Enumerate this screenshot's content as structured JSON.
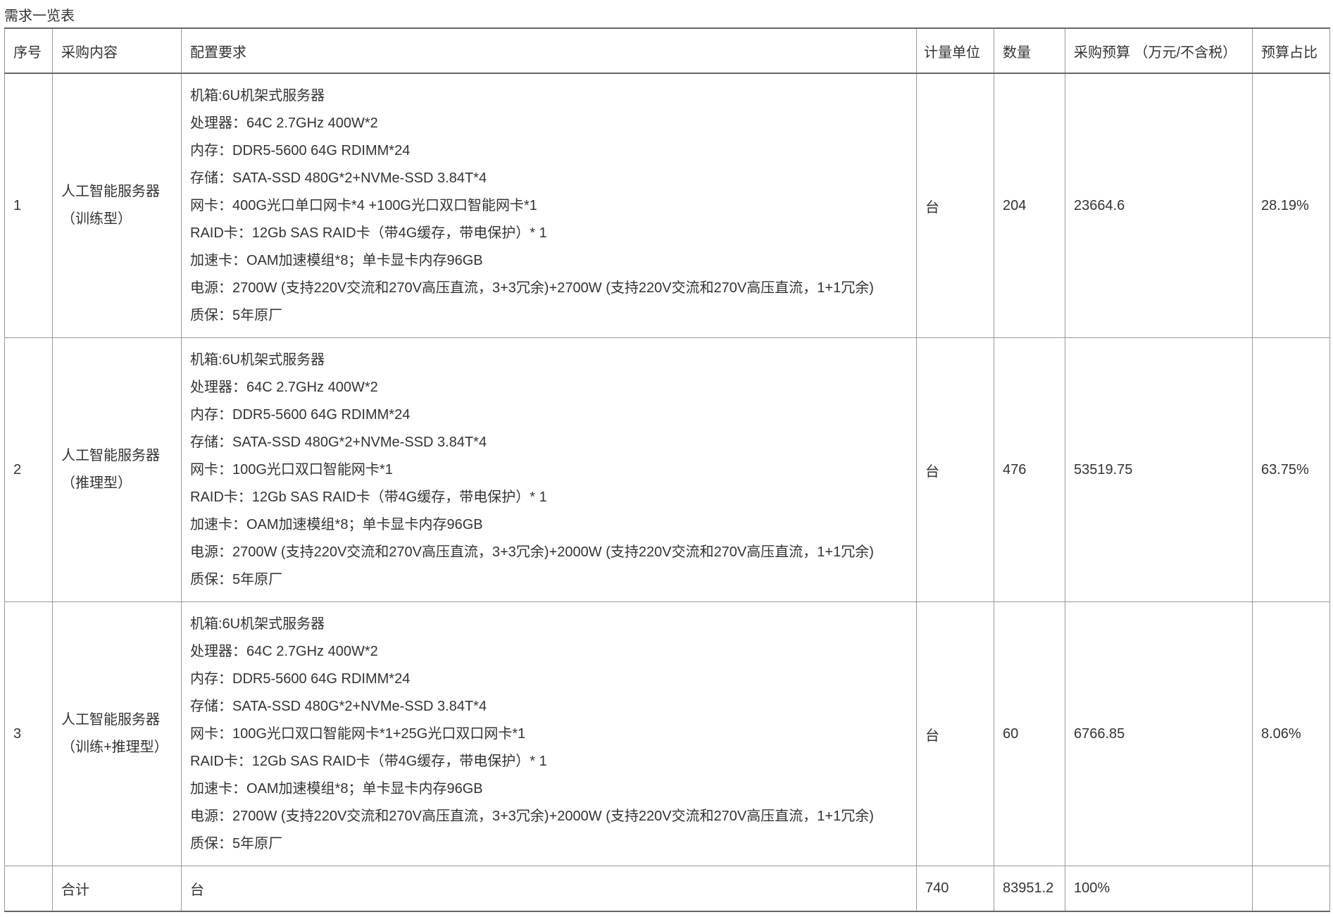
{
  "title": "需求一览表",
  "headers": [
    "序号",
    "采购内容",
    "配置要求",
    "计量单位",
    "数量",
    "采购预算 （万元/不含税）",
    "预算占比"
  ],
  "rows": [
    {
      "no": "1",
      "name": [
        "人工智能服务器",
        "（训练型）"
      ],
      "unit": "台",
      "qty": "204",
      "budget": "23664.6",
      "ratio": "28.19%",
      "config": [
        "机箱:6U机架式服务器",
        "处理器：64C 2.7GHz 400W*2",
        "内存：DDR5-5600 64G RDIMM*24",
        "存储：SATA-SSD 480G*2+NVMe-SSD 3.84T*4",
        "网卡：400G光口单口网卡*4 +100G光口双口智能网卡*1",
        "RAID卡：12Gb SAS RAID卡（带4G缓存，带电保护）* 1",
        "加速卡：OAM加速模组*8；单卡显卡内存96GB",
        "电源：2700W (支持220V交流和270V高压直流，3+3冗余)+2700W (支持220V交流和270V高压直流，1+1冗余)",
        "质保：5年原厂"
      ]
    },
    {
      "no": "2",
      "name": [
        "人工智能服务器",
        "（推理型）"
      ],
      "unit": "台",
      "qty": "476",
      "budget": "53519.75",
      "ratio": "63.75%",
      "config": [
        "机箱:6U机架式服务器",
        "处理器：64C 2.7GHz 400W*2",
        "内存：DDR5-5600 64G RDIMM*24",
        "存储：SATA-SSD 480G*2+NVMe-SSD 3.84T*4",
        "网卡：100G光口双口智能网卡*1",
        "RAID卡：12Gb SAS RAID卡（带4G缓存，带电保护）* 1",
        "加速卡：OAM加速模组*8；单卡显卡内存96GB",
        "电源：2700W (支持220V交流和270V高压直流，3+3冗余)+2000W (支持220V交流和270V高压直流，1+1冗余)",
        "质保：5年原厂"
      ]
    },
    {
      "no": "3",
      "name": [
        "人工智能服务器",
        "（训练+推理型）"
      ],
      "unit": "台",
      "qty": "60",
      "budget": "6766.85",
      "ratio": "8.06%",
      "config": [
        "机箱:6U机架式服务器",
        "处理器：64C 2.7GHz 400W*2",
        "内存：DDR5-5600 64G RDIMM*24",
        "存储：SATA-SSD 480G*2+NVMe-SSD 3.84T*4",
        "网卡：100G光口双口智能网卡*1+25G光口双口网卡*1",
        "RAID卡：12Gb SAS RAID卡（带4G缓存，带电保护）* 1",
        "加速卡：OAM加速模组*8；单卡显卡内存96GB",
        "电源：2700W (支持220V交流和270V高压直流，3+3冗余)+2000W (支持220V交流和270V高压直流，1+1冗余)",
        "质保：5年原厂"
      ]
    }
  ],
  "total": {
    "label": "合计",
    "c2": "台",
    "c3": "740",
    "c4": "83951.2",
    "c5": "100%",
    "c6": ""
  }
}
